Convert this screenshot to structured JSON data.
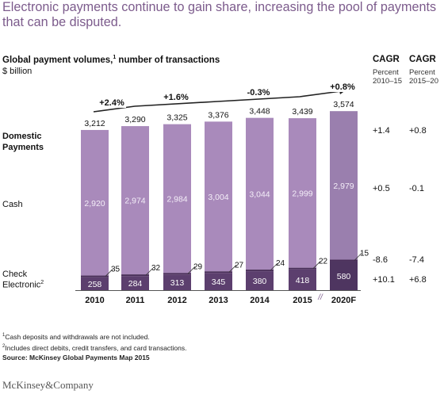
{
  "title": "Electronic payments continue to gain share, increasing the pool of payments that can be disputed.",
  "chart_data": {
    "type": "bar",
    "subtitle": "Global payment volumes,",
    "subtitle_footnote": "1",
    "subtitle_rest": " number of transactions",
    "unit": "$ billion",
    "categories": [
      "2010",
      "2011",
      "2012",
      "2013",
      "2014",
      "2015",
      "2020F"
    ],
    "axis_break_marker": "//",
    "series": [
      {
        "name": "Electronic",
        "values": [
          258,
          284,
          313,
          345,
          380,
          418,
          580
        ],
        "color": "#5c3f6e"
      },
      {
        "name": "Check",
        "values": [
          35,
          32,
          29,
          27,
          24,
          22,
          15
        ],
        "color": "#4a2f5a"
      },
      {
        "name": "Cash",
        "values": [
          2920,
          2974,
          2984,
          3004,
          3044,
          2999,
          2979
        ],
        "color": "#a98abb"
      }
    ],
    "totals": [
      "3,212",
      "3,290",
      "3,325",
      "3,376",
      "3,448",
      "3,439",
      "3,574"
    ],
    "growth_labels": [
      "+2.4%",
      "+1.6%",
      "-0.3%",
      "+0.8%"
    ],
    "row_labels": {
      "domestic_line1": "Domestic",
      "domestic_line2": "Payments",
      "cash": "Cash",
      "check": "Check",
      "electronic": "Electronic",
      "electronic_footnote": "2"
    },
    "cagr_headers": [
      {
        "title": "CAGR",
        "line1": "Percent",
        "line2": "2010–15"
      },
      {
        "title": "CAGR",
        "line1": "Percent",
        "line2": "2015–20"
      }
    ],
    "cagr_rows": {
      "total": [
        "+1.4",
        "+0.8"
      ],
      "cash": [
        "+0.5",
        "-0.1"
      ],
      "check": [
        "-8.6",
        "-7.4"
      ],
      "electronic": [
        "+10.1",
        "+6.8"
      ]
    }
  },
  "footnotes": [
    "Cash deposits and withdrawals are not included.",
    "Includes direct debits, credit transfers, and card transactions."
  ],
  "footnote_marks": [
    "1",
    "2"
  ],
  "source": "Source:  McKinsey Global Payments Map 2015",
  "brand": "McKinsey&Company"
}
